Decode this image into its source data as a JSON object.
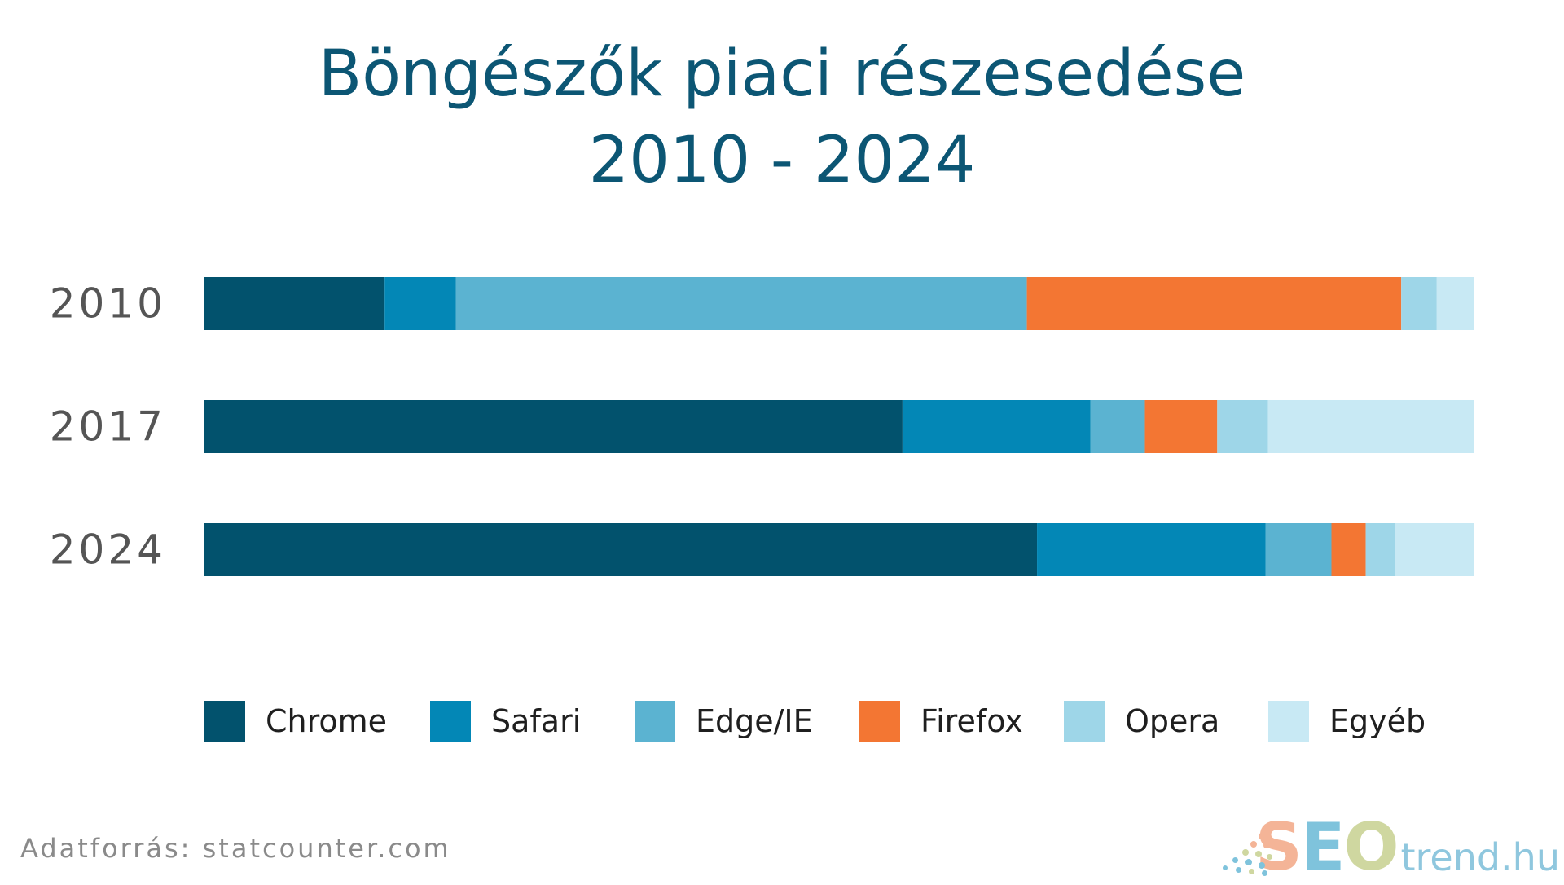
{
  "title": {
    "line1": "Böngészők piaci részesedése",
    "line2": "2010 - 2024"
  },
  "colors": {
    "Chrome": "#02526d",
    "Safari": "#0387b6",
    "Edge/IE": "#5bb3d1",
    "Firefox": "#f37633",
    "Opera": "#9ed6e8",
    "Egyéb": "#c8e9f4"
  },
  "chart_data": {
    "type": "bar",
    "orientation": "horizontal",
    "stacked": true,
    "normalized": true,
    "categories": [
      "2010",
      "2017",
      "2024"
    ],
    "series": [
      {
        "name": "Chrome",
        "values": [
          14.2,
          55.0,
          65.6
        ]
      },
      {
        "name": "Safari",
        "values": [
          5.6,
          14.8,
          18.0
        ]
      },
      {
        "name": "Edge/IE",
        "values": [
          45.0,
          4.3,
          5.2
        ]
      },
      {
        "name": "Firefox",
        "values": [
          29.5,
          5.7,
          2.7
        ]
      },
      {
        "name": "Opera",
        "values": [
          2.8,
          4.0,
          2.3
        ]
      },
      {
        "name": "Egyéb",
        "values": [
          2.9,
          16.2,
          6.2
        ]
      }
    ],
    "xlim": [
      0,
      100
    ],
    "grid": false,
    "legend": "bottom"
  },
  "legend": {
    "items": [
      "Chrome",
      "Safari",
      "Edge/IE",
      "Firefox",
      "Opera",
      "Egyéb"
    ]
  },
  "footer": {
    "source": "Adatforrás: statcounter.com"
  },
  "logo": {
    "s": "S",
    "e": "E",
    "o": "O",
    "tail": "trend.hu"
  }
}
